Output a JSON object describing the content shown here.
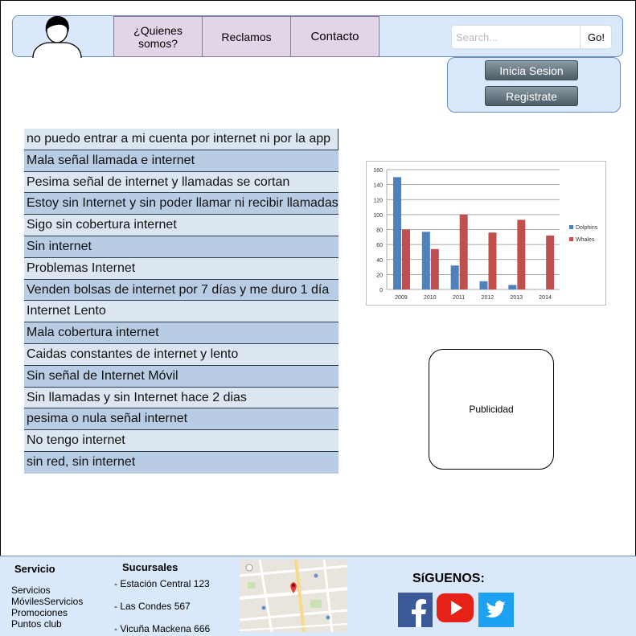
{
  "nav": {
    "items": [
      "¿Quienes somos?",
      "Reclamos",
      "Contacto"
    ],
    "search_placeholder": "Search...",
    "go_label": "Go!"
  },
  "login": {
    "login_label": "Inicia Sesion",
    "register_label": "Registrate"
  },
  "complaints": [
    "no puedo entrar a mi cuenta por internet ni por la app",
    "Mala señal llamada e internet",
    "Pesima señal de internet y llamadas se cortan",
    "Estoy sin Internet y sin poder llamar ni recibir llamadas",
    "Sigo sin cobertura internet",
    "Sin internet",
    "Problemas Internet",
    "Venden bolsas de internet por 7 días y me duro 1 día",
    "Internet Lento",
    "Mala cobertura internet",
    "Caidas constantes de internet y lento",
    "Sin señal de Internet Móvil",
    "Sin llamadas y sin Internet hace 2 dias",
    "pesima o nula señal internet",
    "No tengo internet",
    "sin red, sin internet"
  ],
  "chart_data": {
    "type": "bar",
    "categories": [
      "2009",
      "2010",
      "2011",
      "2012",
      "2013",
      "2014"
    ],
    "series": [
      {
        "name": "Dolphins",
        "values": [
          150,
          77,
          32,
          11,
          6,
          0
        ],
        "color": "#4f81bd"
      },
      {
        "name": "Whales",
        "values": [
          80,
          54,
          100,
          76,
          93,
          72
        ],
        "color": "#c0504d"
      }
    ],
    "ylim": [
      0,
      160
    ],
    "yticks": [
      0,
      20,
      40,
      60,
      80,
      100,
      120,
      140,
      160
    ],
    "grid": true,
    "legend": "right"
  },
  "ad": {
    "label": "Publicidad"
  },
  "footer": {
    "servicio_title": "Servicio",
    "servicio_lines": [
      "Servicios",
      "MóvilesServicios",
      "Promociones",
      "Puntos club"
    ],
    "sucursales_title": "Sucursales",
    "sucursales": [
      "- Estación Central 123",
      "- Las Condes 567",
      "- Vicuña Mackena 666"
    ],
    "social_title": "SíGUENOS:",
    "social_icons": [
      "facebook-icon",
      "youtube-icon",
      "twitter-icon"
    ],
    "colors": {
      "facebook": "#3b5998",
      "youtube": "#e62117",
      "twitter": "#1da1f2"
    }
  }
}
